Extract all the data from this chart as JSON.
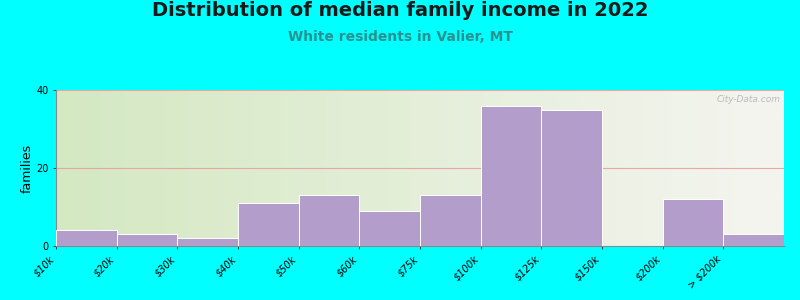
{
  "title": "Distribution of median family income in 2022",
  "subtitle": "White residents in Valier, MT",
  "ylabel": "families",
  "categories": [
    "$10k",
    "$20k",
    "$30k",
    "$40k",
    "$50k",
    "$60k",
    "$75k",
    "$100k",
    "$125k",
    "$150k",
    "$200k",
    "> $200k"
  ],
  "values": [
    4,
    3,
    2,
    11,
    13,
    9,
    13,
    36,
    35,
    0,
    12,
    3
  ],
  "bar_color": "#b39dca",
  "bar_edge_color": "#ffffff",
  "ylim": [
    0,
    40
  ],
  "yticks": [
    0,
    20,
    40
  ],
  "background_color": "#00ffff",
  "plot_bg_gradient_left": "#d4e8c2",
  "plot_bg_gradient_right": "#f5f5f0",
  "grid_color": "#e8a0a0",
  "title_fontsize": 14,
  "subtitle_fontsize": 10,
  "subtitle_color": "#2a9090",
  "ylabel_fontsize": 9,
  "tick_fontsize": 7,
  "watermark": "City-Data.com"
}
